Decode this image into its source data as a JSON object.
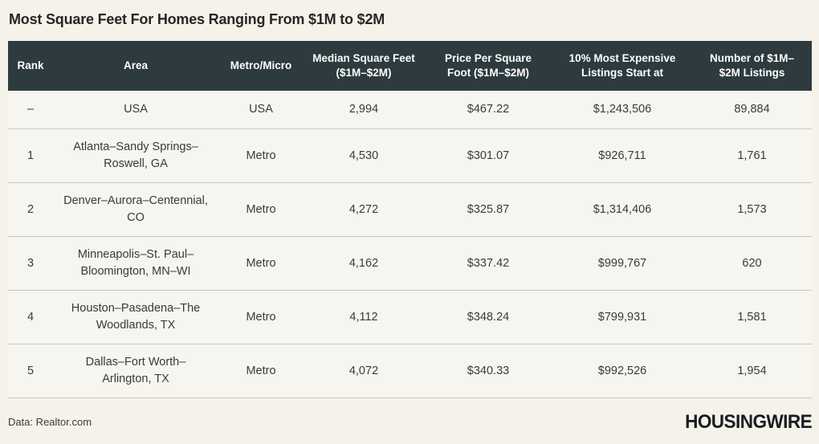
{
  "title": "Most Square Feet For Homes Ranging From $1M to $2M",
  "chart_data": {
    "type": "table",
    "title": "Most Square Feet For Homes Ranging From $1M to $2M",
    "columns": [
      "Rank",
      "Area",
      "Metro/Micro",
      "Median Square Feet ($1M–$2M)",
      "Price Per Square Foot ($1M–$2M)",
      "10% Most Expensive Listings Start at",
      "Number of $1M–$2M Listings"
    ],
    "rows": [
      {
        "rank": "–",
        "area": "USA",
        "metro": "USA",
        "median_sqft": "2,994",
        "price_per_sqft": "$467.22",
        "top10_start": "$1,243,506",
        "listings": "89,884"
      },
      {
        "rank": "1",
        "area": "Atlanta–Sandy Springs–Roswell, GA",
        "metro": "Metro",
        "median_sqft": "4,530",
        "price_per_sqft": "$301.07",
        "top10_start": "$926,711",
        "listings": "1,761"
      },
      {
        "rank": "2",
        "area": "Denver–Aurora–Centennial, CO",
        "metro": "Metro",
        "median_sqft": "4,272",
        "price_per_sqft": "$325.87",
        "top10_start": "$1,314,406",
        "listings": "1,573"
      },
      {
        "rank": "3",
        "area": "Minneapolis–St. Paul–Bloomington, MN–WI",
        "metro": "Metro",
        "median_sqft": "4,162",
        "price_per_sqft": "$337.42",
        "top10_start": "$999,767",
        "listings": "620"
      },
      {
        "rank": "4",
        "area": "Houston–Pasadena–The Woodlands, TX",
        "metro": "Metro",
        "median_sqft": "4,112",
        "price_per_sqft": "$348.24",
        "top10_start": "$799,931",
        "listings": "1,581"
      },
      {
        "rank": "5",
        "area": "Dallas–Fort Worth–Arlington, TX",
        "metro": "Metro",
        "median_sqft": "4,072",
        "price_per_sqft": "$340.33",
        "top10_start": "$992,526",
        "listings": "1,954"
      }
    ]
  },
  "footer": {
    "source": "Data: Realtor.com",
    "logo": "HOUSINGWIRE"
  },
  "colors": {
    "header_bg": "#2d3a3e",
    "page_bg": "#f5f2ea",
    "row_bg": "#f7f5f0",
    "divider": "#cac8c2",
    "title_text": "#262626",
    "body_text": "#3a3a3a",
    "logo_text": "#181d22"
  }
}
